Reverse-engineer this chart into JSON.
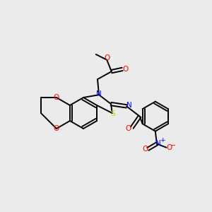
{
  "bg_color": "#ebebeb",
  "bond_color": "#000000",
  "bond_width": 1.4,
  "atom_colors": {
    "O": "#ff0000",
    "N": "#0000ff",
    "S": "#cccc00",
    "C": "#000000"
  },
  "figsize": [
    3.0,
    3.0
  ],
  "dpi": 100
}
